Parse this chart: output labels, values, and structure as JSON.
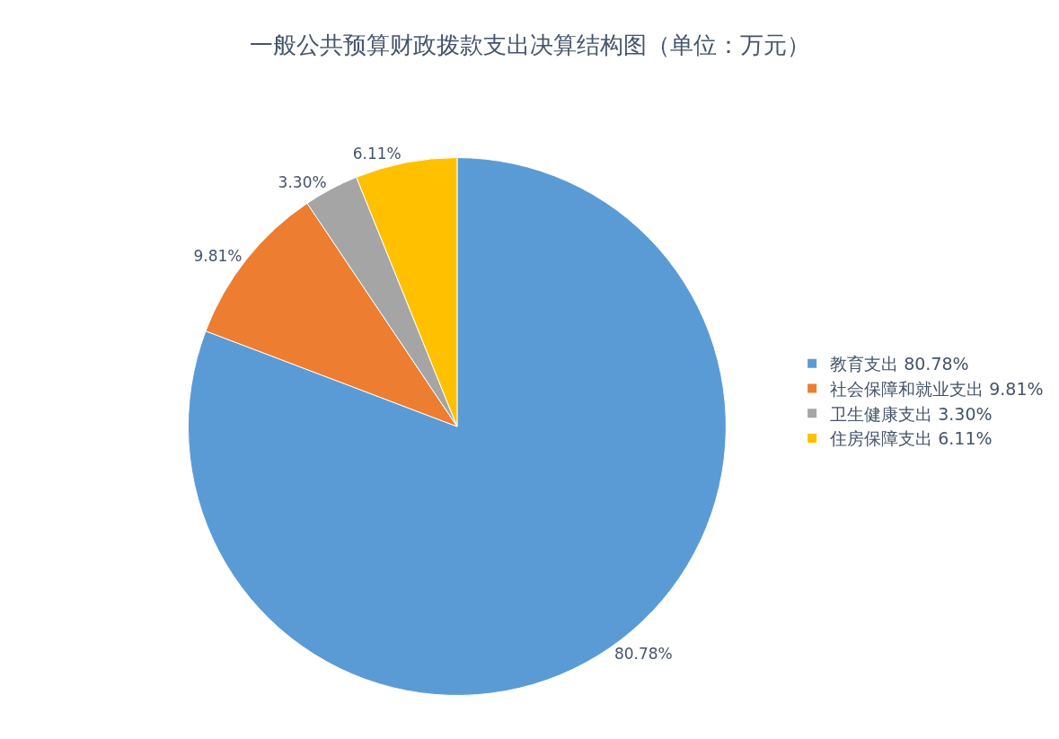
{
  "chart_data": {
    "type": "pie",
    "title": "一般公共预算财政拨款支出决算结构图（单位：万元）",
    "categories": [
      "教育支出",
      "社会保障和就业支出",
      "卫生健康支出",
      "住房保障支出"
    ],
    "values": [
      80.78,
      9.81,
      3.3,
      6.11
    ],
    "value_labels": [
      "80.78%",
      "9.81%",
      "3.30%",
      "6.11%"
    ],
    "colors": [
      "#5b9bd5",
      "#ed7d31",
      "#a5a5a5",
      "#ffc000"
    ],
    "legend": "right"
  }
}
